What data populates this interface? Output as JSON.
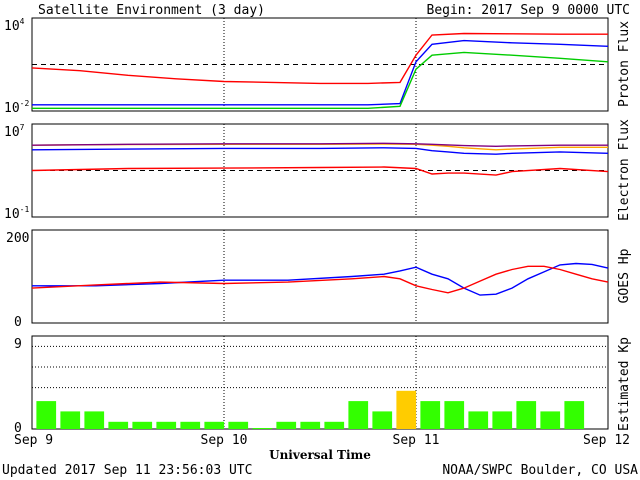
{
  "header": {
    "title": "Satellite Environment (3 day)",
    "begin": "Begin:  2017 Sep 9 0000 UTC"
  },
  "footer": {
    "updated": "Updated 2017 Sep 11 23:56:03 UTC",
    "source": "NOAA/SWPC Boulder, CO USA"
  },
  "chart_data": [
    {
      "type": "line",
      "name": "proton",
      "ylabel": "Proton Flux",
      "yscale": "log",
      "ylim": [
        0.01,
        10000
      ],
      "tick_labels": {
        "top": "10",
        "top_exp": "4",
        "bottom": "10",
        "bottom_exp": "-2"
      },
      "threshold": 10,
      "x": [
        0,
        6,
        12,
        18,
        24,
        30,
        36,
        42,
        46,
        48,
        50,
        54,
        60,
        66,
        72
      ],
      "series": [
        {
          "color": "#ff0000",
          "values": [
            6,
            4,
            2,
            1.2,
            0.8,
            0.7,
            0.6,
            0.6,
            0.7,
            40,
            800,
            1000,
            950,
            900,
            900
          ]
        },
        {
          "color": "#0000ff",
          "values": [
            0.025,
            0.025,
            0.025,
            0.025,
            0.025,
            0.025,
            0.025,
            0.025,
            0.03,
            15,
            200,
            350,
            250,
            200,
            150
          ]
        },
        {
          "color": "#00cc00",
          "values": [
            0.015,
            0.015,
            0.015,
            0.015,
            0.015,
            0.015,
            0.015,
            0.015,
            0.02,
            5,
            40,
            60,
            40,
            25,
            15
          ]
        }
      ]
    },
    {
      "type": "line",
      "name": "electron",
      "ylabel": "Electron Flux",
      "yscale": "log",
      "ylim": [
        0.1,
        10000000
      ],
      "tick_labels": {
        "top": "10",
        "top_exp": "7",
        "bottom": "10",
        "bottom_exp": "-1"
      },
      "threshold": 1000,
      "x": [
        0,
        12,
        24,
        36,
        44,
        48,
        50,
        52,
        54,
        58,
        60,
        66,
        72
      ],
      "series": [
        {
          "color": "#ff0000",
          "values": [
            1000,
            1500,
            1600,
            1800,
            2000,
            1500,
            500,
            600,
            600,
            400,
            800,
            1500,
            800
          ]
        },
        {
          "color": "#0000ff",
          "values": [
            60000,
            70000,
            80000,
            80000,
            90000,
            80000,
            50000,
            40000,
            30000,
            25000,
            30000,
            40000,
            30000
          ]
        },
        {
          "color": "#ffa500",
          "values": [
            150000,
            170000,
            180000,
            180000,
            190000,
            180000,
            150000,
            120000,
            90000,
            60000,
            70000,
            100000,
            100000
          ]
        },
        {
          "color": "#800080",
          "values": [
            150000,
            180000,
            200000,
            200000,
            220000,
            200000,
            180000,
            160000,
            140000,
            120000,
            130000,
            150000,
            150000
          ]
        }
      ]
    },
    {
      "type": "line",
      "name": "hp",
      "ylabel": "GOES Hp",
      "yscale": "linear",
      "ylim": [
        0,
        200
      ],
      "tick_labels": {
        "top": "200",
        "bottom": "0"
      },
      "x": [
        0,
        8,
        16,
        24,
        32,
        40,
        44,
        46,
        48,
        50,
        52,
        54,
        56,
        58,
        60,
        62,
        64,
        66,
        68,
        70,
        72
      ],
      "series": [
        {
          "color": "#0000ff",
          "values": [
            80,
            80,
            85,
            92,
            92,
            100,
            105,
            112,
            120,
            105,
            95,
            75,
            60,
            62,
            75,
            95,
            110,
            125,
            128,
            126,
            118
          ]
        },
        {
          "color": "#ff0000",
          "values": [
            75,
            82,
            88,
            85,
            88,
            95,
            100,
            95,
            80,
            72,
            65,
            75,
            90,
            105,
            115,
            122,
            122,
            115,
            105,
            95,
            88
          ]
        }
      ]
    },
    {
      "type": "bar",
      "name": "kp",
      "ylabel": "Estimated Kp",
      "ylim": [
        0,
        9
      ],
      "tick_labels": {
        "top": "9",
        "bottom": "0"
      },
      "values": [
        2.7,
        1.7,
        1.7,
        0.7,
        0.7,
        0.7,
        0.7,
        0.7,
        0.7,
        0.1,
        0.7,
        0.7,
        0.7,
        2.7,
        1.7,
        3.7,
        2.7,
        2.7,
        1.7,
        1.7,
        2.7,
        1.7,
        2.7
      ],
      "highlight": {
        "index": 15,
        "color": "#ffcc00"
      },
      "bar_color": "#33ff00",
      "gridlines": [
        4,
        6,
        8
      ]
    }
  ],
  "xaxis": {
    "labels": [
      "Sep 9",
      "Sep 10",
      "Sep 11",
      "Sep 12"
    ],
    "title": "Universal Time"
  }
}
